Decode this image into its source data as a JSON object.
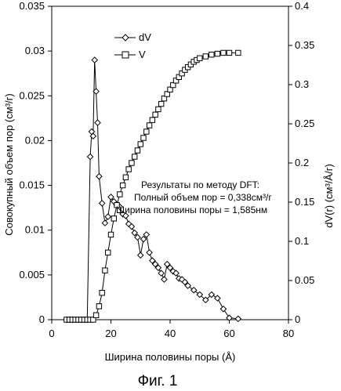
{
  "chart_data": {
    "type": "line",
    "title": "",
    "xlabel": "Ширина половины поры (Å)",
    "ylabel_left": "Совокупный объем пор (см³/г)",
    "ylabel_right": "dV(r) (см³/Å/г)",
    "xlim": [
      0,
      80
    ],
    "ylim_left": [
      0,
      0.035
    ],
    "ylim_right": [
      0,
      0.4
    ],
    "x_ticks": [
      "0",
      "20",
      "40",
      "60",
      "80"
    ],
    "y_left_ticks": [
      "0",
      "0.005",
      "0.01",
      "0.015",
      "0.02",
      "0.025",
      "0.03",
      "0.035"
    ],
    "y_right_ticks": [
      "0",
      "0.05",
      "0.1",
      "0.15",
      "0.2",
      "0.25",
      "0.3",
      "0.35",
      "0.4"
    ],
    "grid": false,
    "legend_position": "top-left",
    "series": [
      {
        "name": "dV",
        "axis": "left",
        "marker": "diamond",
        "x": [
          5,
          6,
          7,
          8,
          9,
          10,
          11,
          12,
          13,
          13.5,
          14,
          14.5,
          15,
          15.5,
          16,
          17,
          18,
          19,
          20,
          21,
          22,
          23,
          24,
          25,
          26,
          27,
          28,
          29,
          30,
          31,
          32,
          33,
          34,
          35,
          36,
          37,
          38,
          39,
          40,
          41,
          42,
          43,
          44,
          45,
          46,
          48,
          50,
          52,
          54,
          56,
          58,
          60,
          63
        ],
        "y": [
          0,
          0,
          0,
          0,
          0,
          0,
          0,
          0,
          0.0182,
          0.021,
          0.0205,
          0.029,
          0.0255,
          0.022,
          0.016,
          0.013,
          0.0108,
          0.0115,
          0.0137,
          0.0132,
          0.0128,
          0.0126,
          0.0118,
          0.0116,
          0.0107,
          0.0104,
          0.0097,
          0.0092,
          0.0072,
          0.009,
          0.0095,
          0.0075,
          0.0066,
          0.0062,
          0.0058,
          0.0052,
          0.0045,
          0.0062,
          0.0058,
          0.0054,
          0.0052,
          0.0046,
          0.0045,
          0.0042,
          0.0038,
          0.0033,
          0.0028,
          0.0022,
          0.0028,
          0.0024,
          0.0012,
          0.0002,
          0.0001
        ]
      },
      {
        "name": "V",
        "axis": "left",
        "marker": "square",
        "x": [
          5,
          6,
          7,
          8,
          9,
          10,
          11,
          12,
          13,
          14,
          15,
          16,
          17,
          18,
          19,
          20,
          21,
          22,
          23,
          24,
          25,
          26,
          27,
          28,
          29,
          30,
          31,
          32,
          33,
          34,
          35,
          36,
          37,
          38,
          39,
          40,
          41,
          42,
          43,
          44,
          45,
          46,
          47,
          48,
          49,
          50,
          52,
          54,
          56,
          58,
          60,
          63
        ],
        "y": [
          0,
          0,
          0,
          0,
          0,
          0,
          0,
          0,
          0,
          0,
          0.0005,
          0.0015,
          0.003,
          0.0055,
          0.0075,
          0.0095,
          0.0113,
          0.0128,
          0.014,
          0.015,
          0.0159,
          0.0168,
          0.0175,
          0.0182,
          0.0189,
          0.0196,
          0.0203,
          0.021,
          0.0217,
          0.0223,
          0.0229,
          0.0235,
          0.0241,
          0.0247,
          0.0252,
          0.0257,
          0.0262,
          0.0267,
          0.0271,
          0.0275,
          0.0279,
          0.0282,
          0.0285,
          0.0288,
          0.029,
          0.0292,
          0.0294,
          0.0296,
          0.0297,
          0.0298,
          0.0298,
          0.0298
        ]
      }
    ],
    "annotation": [
      "Результаты по методу DFT:",
      "Полный объем пор = 0,338см³/г",
      "Ширина половины поры = 1,585нм"
    ],
    "caption": "Фиг. 1"
  }
}
